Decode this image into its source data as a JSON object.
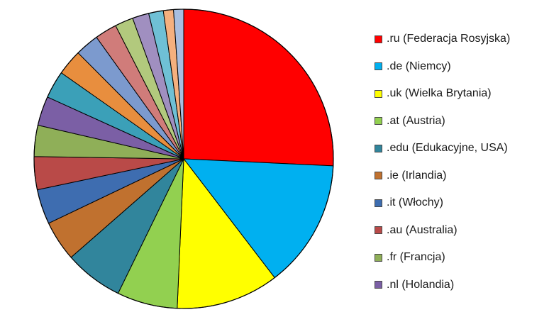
{
  "chart_data": {
    "type": "pie",
    "title": "",
    "start_angle_deg": 0,
    "direction": "clockwise",
    "legend_placement": "right",
    "slices": [
      {
        "label": ".ru (Federacja Rosyjska)",
        "value": 26.0,
        "color": "#FF0000",
        "in_legend": true
      },
      {
        "label": ".de (Niemcy)",
        "value": 14.0,
        "color": "#00B0F0",
        "in_legend": true
      },
      {
        "label": ".uk (Wielka Brytania)",
        "value": 11.2,
        "color": "#FFFF00",
        "in_legend": true
      },
      {
        "label": ".at (Austria)",
        "value": 6.6,
        "color": "#92D050",
        "in_legend": true
      },
      {
        "label": ".edu (Edukacyjne, USA)",
        "value": 6.4,
        "color": "#31859C",
        "in_legend": true
      },
      {
        "label": ".ie (Irlandia)",
        "value": 4.4,
        "color": "#C0712F",
        "in_legend": true
      },
      {
        "label": ".it (Włochy)",
        "value": 3.8,
        "color": "#3E6DB0",
        "in_legend": true
      },
      {
        "label": ".au (Australia)",
        "value": 3.6,
        "color": "#B94A48",
        "in_legend": true
      },
      {
        "label": ".fr (Francja)",
        "value": 3.4,
        "color": "#8FAF58",
        "in_legend": true
      },
      {
        "label": ".nl (Holandia)",
        "value": 3.2,
        "color": "#7B5FA5",
        "in_legend": true
      },
      {
        "label": "",
        "value": 3.0,
        "color": "#3BA0B8",
        "in_legend": false
      },
      {
        "label": "",
        "value": 2.8,
        "color": "#E88E3E",
        "in_legend": false
      },
      {
        "label": "",
        "value": 2.6,
        "color": "#7C9ACE",
        "in_legend": false
      },
      {
        "label": "",
        "value": 2.4,
        "color": "#D07C7A",
        "in_legend": false
      },
      {
        "label": "",
        "value": 2.0,
        "color": "#B2C97D",
        "in_legend": false
      },
      {
        "label": "",
        "value": 1.8,
        "color": "#A08FC0",
        "in_legend": false
      },
      {
        "label": "",
        "value": 1.6,
        "color": "#6FC0D5",
        "in_legend": false
      },
      {
        "label": "",
        "value": 1.1,
        "color": "#F5B07E",
        "in_legend": false
      },
      {
        "label": "",
        "value": 1.1,
        "color": "#A8BEE0",
        "in_legend": false
      }
    ]
  }
}
